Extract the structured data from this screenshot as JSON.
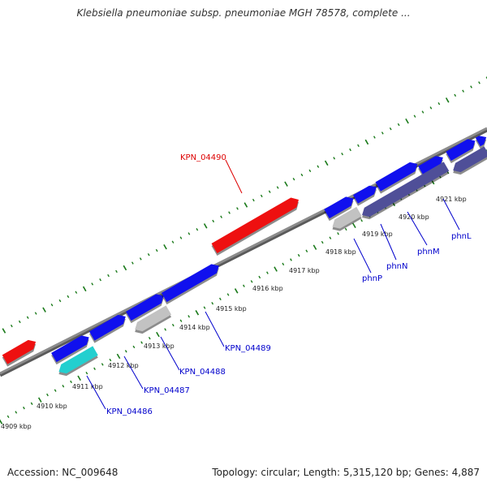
{
  "title": "Klebsiella pneumoniae subsp. pneumoniae MGH 78578, complete ...",
  "footer": {
    "accession": "Accession: NC_009648",
    "summary": "Topology: circular; Length: 5,315,120 bp; Genes: 4,887"
  },
  "colors": {
    "backbone": "#8c8c8c",
    "tick": "#1a7a1a",
    "forward_gene": "#1010ee",
    "reverse_gene": "#ee1010",
    "highlight_gene": "#23cfcf",
    "gray_gene": "#c2c2c2",
    "dark_gene": "#4f4f98",
    "label_red": "#dd0000",
    "label_blue": "#0000cc"
  },
  "scale_ticks": [
    {
      "label": "4909 kbp"
    },
    {
      "label": "4910 kbp"
    },
    {
      "label": "4911 kbp"
    },
    {
      "label": "4912 kbp"
    },
    {
      "label": "4913 kbp"
    },
    {
      "label": "4914 kbp"
    },
    {
      "label": "4915 kbp"
    },
    {
      "label": "4916 kbp"
    },
    {
      "label": "4917 kbp"
    },
    {
      "label": "4918 kbp"
    },
    {
      "label": "4919 kbp"
    },
    {
      "label": "4920 kbp"
    },
    {
      "label": "4921 kbp"
    }
  ],
  "gene_labels": [
    {
      "name": "KPN_04490",
      "color": "red"
    },
    {
      "name": "KPN_04489",
      "color": "blue"
    },
    {
      "name": "KPN_04488",
      "color": "blue"
    },
    {
      "name": "KPN_04487",
      "color": "blue"
    },
    {
      "name": "KPN_04486",
      "color": "blue"
    },
    {
      "name": "phnP",
      "color": "blue"
    },
    {
      "name": "phnN",
      "color": "blue"
    },
    {
      "name": "phnM",
      "color": "blue"
    },
    {
      "name": "phnL",
      "color": "blue"
    }
  ]
}
